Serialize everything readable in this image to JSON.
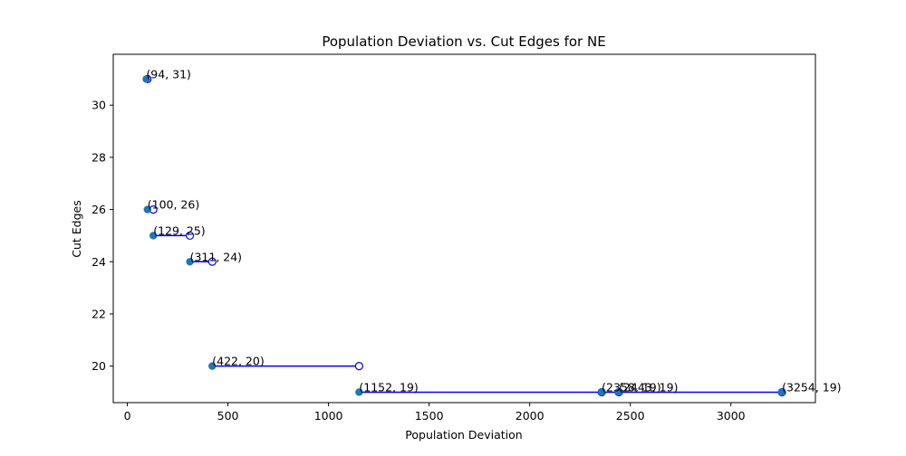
{
  "chart_data": {
    "type": "scatter",
    "title": "Population Deviation vs. Cut Edges for NE",
    "xlabel": "Population Deviation",
    "ylabel": "Cut Edges",
    "xlim": [
      -70,
      3420
    ],
    "ylim": [
      18.6,
      31.95
    ],
    "xticks": [
      0,
      500,
      1000,
      1500,
      2000,
      2500,
      3000
    ],
    "yticks": [
      20,
      22,
      24,
      26,
      28,
      30
    ],
    "grid": false,
    "point_color": "#1f77b4",
    "step_color": "#0000ff",
    "points": [
      {
        "x": 94,
        "y": 31,
        "label": "(94, 31)"
      },
      {
        "x": 100,
        "y": 26,
        "label": "(100, 26)"
      },
      {
        "x": 129,
        "y": 25,
        "label": "(129, 25)"
      },
      {
        "x": 311,
        "y": 24,
        "label": "(311, 24)"
      },
      {
        "x": 422,
        "y": 20,
        "label": "(422, 20)"
      },
      {
        "x": 1152,
        "y": 19,
        "label": "(1152, 19)"
      },
      {
        "x": 2358,
        "y": 19,
        "label": "(2358, 19)"
      },
      {
        "x": 2443,
        "y": 19,
        "label": "(2443, 19)"
      },
      {
        "x": 3254,
        "y": 19,
        "label": "(3254, 19)"
      }
    ],
    "steps": [
      {
        "y": 31,
        "x_start": 94,
        "x_end": 100
      },
      {
        "y": 26,
        "x_start": 100,
        "x_end": 129
      },
      {
        "y": 25,
        "x_start": 129,
        "x_end": 311
      },
      {
        "y": 24,
        "x_start": 311,
        "x_end": 422
      },
      {
        "y": 20,
        "x_start": 422,
        "x_end": 1152
      },
      {
        "y": 19,
        "x_start": 1152,
        "x_end": 2358
      },
      {
        "y": 19,
        "x_start": 2358,
        "x_end": 2443
      },
      {
        "y": 19,
        "x_start": 2443,
        "x_end": 3254
      }
    ]
  }
}
